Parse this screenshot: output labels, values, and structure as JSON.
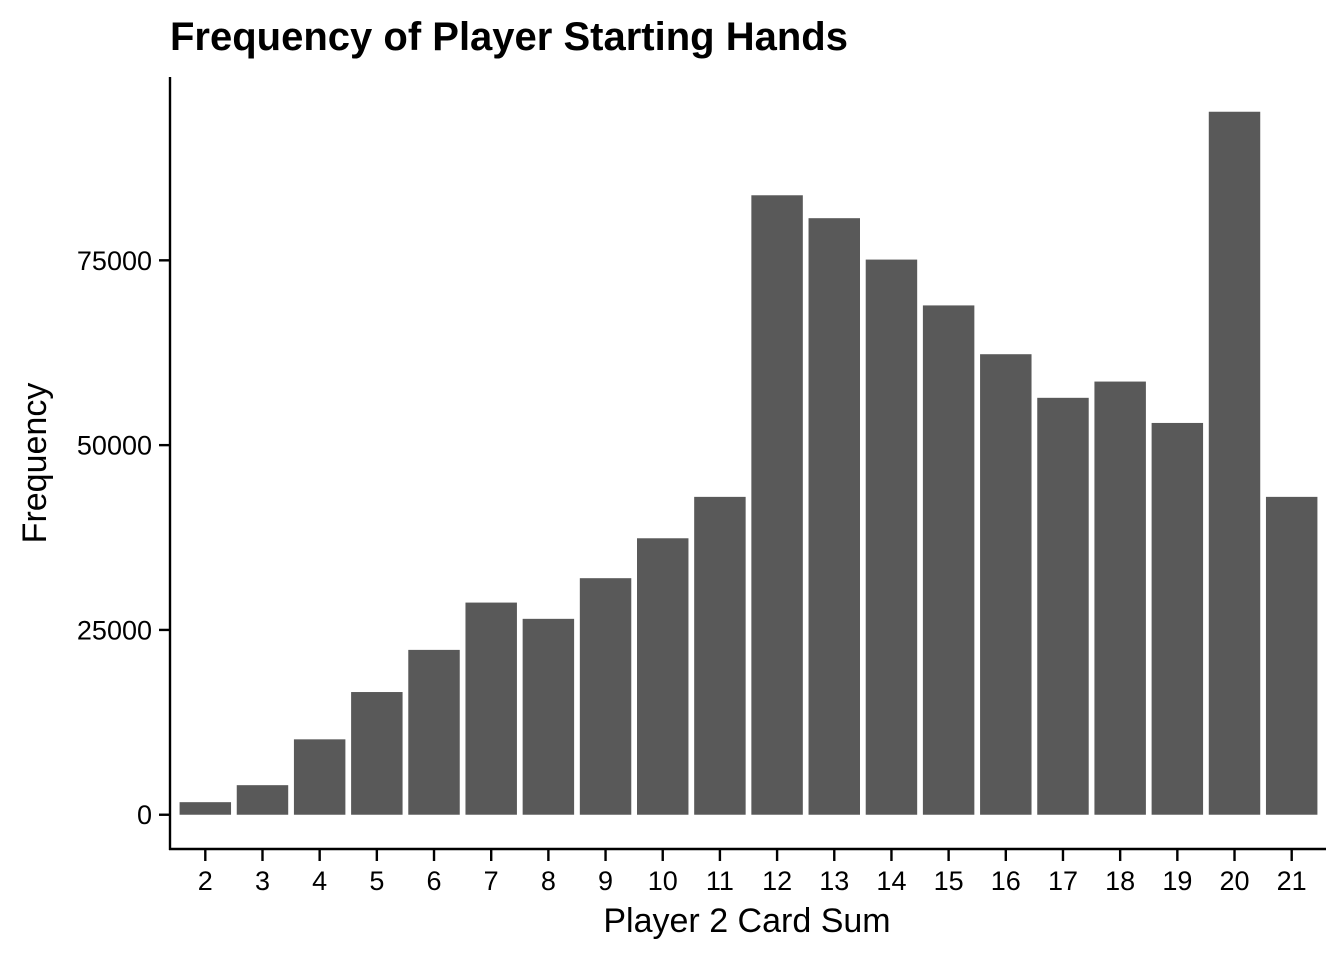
{
  "chart_data": {
    "type": "bar",
    "title": "Frequency of Player Starting Hands",
    "xlabel": "Player 2 Card Sum",
    "ylabel": "Frequency",
    "categories": [
      "2",
      "3",
      "4",
      "5",
      "6",
      "7",
      "8",
      "9",
      "10",
      "11",
      "12",
      "13",
      "14",
      "15",
      "16",
      "17",
      "18",
      "19",
      "20",
      "21"
    ],
    "values": [
      1700,
      4000,
      10200,
      16600,
      22300,
      28700,
      26500,
      32000,
      37400,
      43000,
      83800,
      80700,
      75100,
      68900,
      62300,
      56400,
      58600,
      53000,
      95100,
      43000
    ],
    "y_ticks": [
      0,
      25000,
      50000,
      75000
    ],
    "y_tick_labels": [
      "0",
      "25000",
      "50000",
      "75000"
    ],
    "ylim": [
      -4500,
      99800
    ],
    "bar_color": "#595959",
    "grid": false,
    "legend": "none"
  }
}
